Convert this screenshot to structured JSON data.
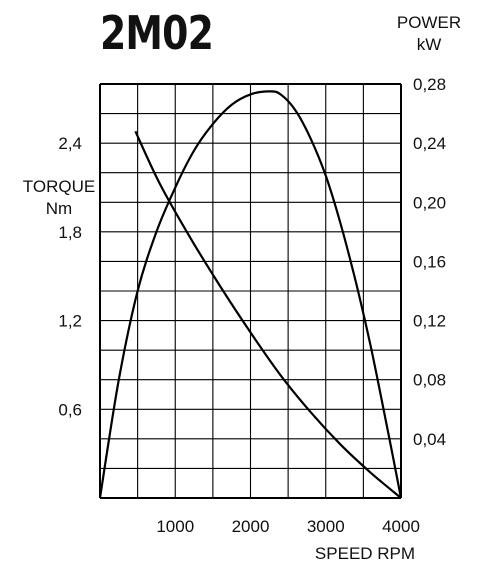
{
  "chart_data": {
    "type": "line",
    "title": "2M02",
    "xlabel": "SPEED RPM",
    "ylabel_left": [
      "TORQUE",
      "Nm"
    ],
    "ylabel_right": [
      "POWER",
      "kW"
    ],
    "xlim": [
      0,
      4000
    ],
    "ylim_left": [
      0,
      2.8
    ],
    "ylim_right": [
      0,
      0.28
    ],
    "x_ticks": [
      1000,
      2000,
      3000,
      4000
    ],
    "x_tick_labels": [
      "1000",
      "2000",
      "3000",
      "4000"
    ],
    "y_left_ticks": [
      0.6,
      1.2,
      1.8,
      2.4
    ],
    "y_left_tick_labels": [
      "0,6",
      "1,2",
      "1,8",
      "2,4"
    ],
    "y_right_ticks": [
      0.04,
      0.08,
      0.12,
      0.16,
      0.2,
      0.24,
      0.28
    ],
    "y_right_tick_labels": [
      "0,04",
      "0,08",
      "0,12",
      "0,16",
      "0,20",
      "0,24",
      "0,28"
    ],
    "grid": true,
    "series": [
      {
        "axis": "left",
        "x": [
          470,
          800,
          1200,
          1600,
          2000,
          2400,
          2800,
          3200,
          3600,
          4000
        ],
        "y": [
          2.48,
          2.12,
          1.76,
          1.43,
          1.12,
          0.83,
          0.58,
          0.36,
          0.17,
          0.0
        ]
      },
      {
        "axis": "right",
        "x": [
          0,
          250,
          500,
          750,
          1000,
          1250,
          1500,
          1750,
          2000,
          2250,
          2400,
          2600,
          2800,
          3000,
          3200,
          3400,
          3600,
          3800,
          4000
        ],
        "y": [
          0.0,
          0.08,
          0.14,
          0.18,
          0.21,
          0.235,
          0.253,
          0.266,
          0.273,
          0.275,
          0.273,
          0.262,
          0.243,
          0.218,
          0.185,
          0.146,
          0.102,
          0.052,
          0.0
        ]
      }
    ]
  }
}
